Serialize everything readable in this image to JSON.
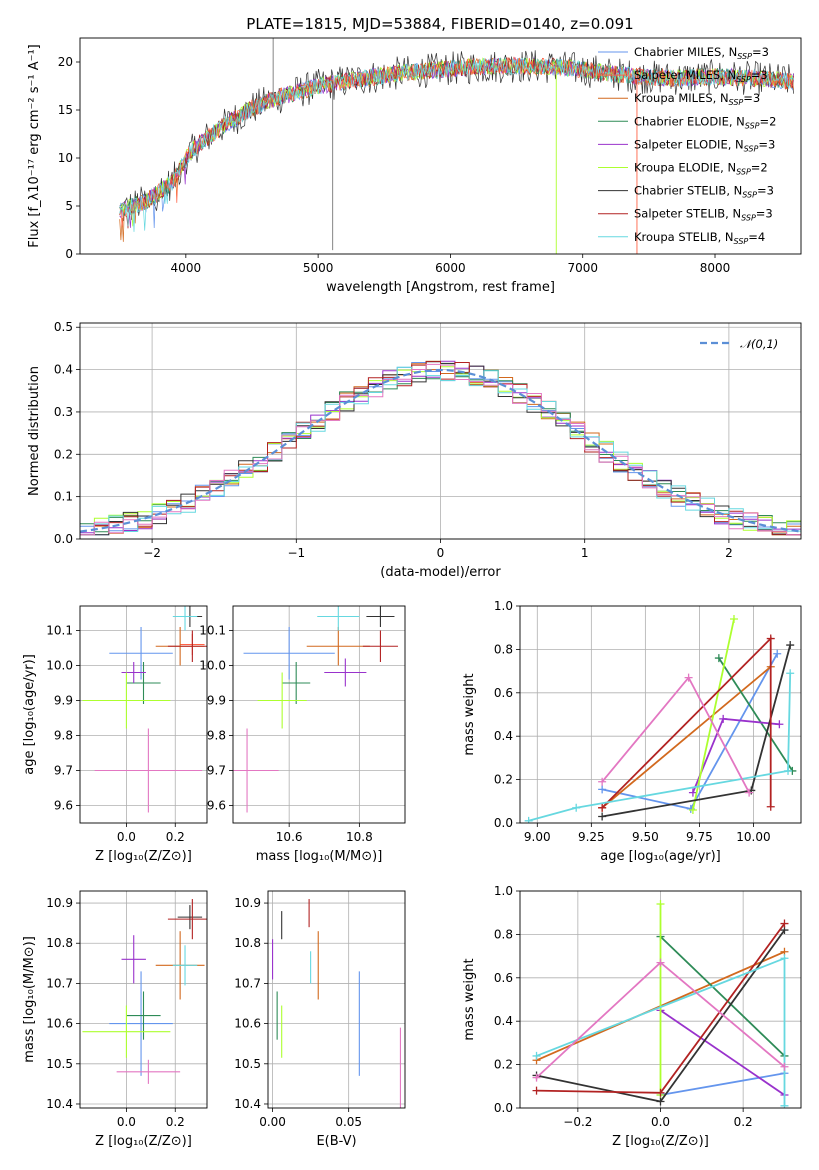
{
  "title": "PLATE=1815, MJD=53884, FIBERID=0140, z=0.091",
  "colors": {
    "Chabrier MILES": "#6495ED",
    "Salpeter MILES": "#FF6347",
    "Kroupa MILES": "#D2691E",
    "Chabrier ELODIE": "#2E8B57",
    "Salpeter ELODIE": "#9932CC",
    "Kroupa ELODIE": "#ADFF2F",
    "Chabrier STELIB": "#333333",
    "Salpeter STELIB": "#B22222",
    "Kroupa STELIB": "#66D8E0",
    "gauss": "#5B8FD6",
    "grid": "#b0b0b0"
  },
  "chart_data": [
    {
      "panel": "spectrum",
      "type": "line",
      "xlabel": "wavelength [Angstrom, rest frame]",
      "ylabel": "Flux [f_λ10⁻¹⁷ erg cm⁻² s⁻¹ A⁻¹]",
      "xlim": [
        3200,
        8650
      ],
      "ylim": [
        0,
        22.5
      ],
      "xticks": [
        4000,
        5000,
        6000,
        7000,
        8000
      ],
      "yticks": [
        0,
        5,
        10,
        15,
        20
      ],
      "grid": false,
      "legend_position": "upper-right",
      "legend": [
        "Chabrier MILES, N_SSP=3",
        "Salpeter MILES, N_SSP=3",
        "Kroupa MILES, N_SSP=3",
        "Chabrier ELODIE, N_SSP=2",
        "Salpeter ELODIE, N_SSP=3",
        "Kroupa ELODIE, N_SSP=2",
        "Chabrier STELIB, N_SSP=3",
        "Salpeter STELIB, N_SSP=3",
        "Kroupa STELIB, N_SSP=4"
      ],
      "legend_rich": [
        [
          "Chabrier MILES, N",
          "SSP",
          "=3"
        ],
        [
          "Salpeter MILES, N",
          "SSP",
          "=3"
        ],
        [
          "Kroupa MILES, N",
          "SSP",
          "=3"
        ],
        [
          "Chabrier ELODIE, N",
          "SSP",
          "=2"
        ],
        [
          "Salpeter ELODIE, N",
          "SSP",
          "=3"
        ],
        [
          "Kroupa ELODIE, N",
          "SSP",
          "=2"
        ],
        [
          "Chabrier STELIB, N",
          "SSP",
          "=3"
        ],
        [
          "Salpeter STELIB, N",
          "SSP",
          "=3"
        ],
        [
          "Kroupa STELIB, N",
          "SSP",
          "=4"
        ]
      ],
      "continuum": {
        "x": [
          3500,
          3700,
          3900,
          4000,
          4100,
          4300,
          4500,
          4700,
          5000,
          5300,
          5600,
          5900,
          6200,
          6500,
          6800,
          7000,
          7200,
          7400,
          7700,
          8000,
          8300,
          8600
        ],
        "y": [
          4.5,
          5.5,
          7.5,
          10.0,
          11.5,
          13.5,
          15.2,
          16.3,
          17.5,
          18.2,
          18.8,
          19.2,
          19.5,
          19.6,
          19.5,
          19.2,
          18.8,
          18.5,
          18.3,
          18.5,
          18.3,
          18.0
        ]
      },
      "spikes": [
        {
          "x": 4660,
          "y": 22.5
        },
        {
          "x": 5110,
          "y": 0.4
        },
        {
          "x": 6800,
          "y": 0
        },
        {
          "x": 7410,
          "y": 0
        }
      ]
    },
    {
      "panel": "residual-histogram",
      "type": "line",
      "xlabel": "(data-model)/error",
      "ylabel": "Normed distribution",
      "xlim": [
        -2.5,
        2.5
      ],
      "ylim": [
        0,
        0.51
      ],
      "xticks": [
        -2,
        -1,
        0,
        1,
        2
      ],
      "yticks": [
        0.0,
        0.1,
        0.2,
        0.3,
        0.4,
        0.5
      ],
      "grid": true,
      "legend_position": "upper-right",
      "legend": [
        "𝒩(0,1)"
      ]
    },
    {
      "panel": "age-vs-Z",
      "type": "scatter",
      "xlabel": "Z [log₁₀(Z/Z⊙)]",
      "ylabel": "age [log₁₀(age/yr)]",
      "xlim": [
        -0.19,
        0.33
      ],
      "ylim": [
        9.55,
        10.17
      ],
      "xticks": [
        0.0,
        0.2
      ],
      "yticks": [
        9.6,
        9.7,
        9.8,
        9.9,
        10.0,
        10.1
      ],
      "grid": true,
      "points": [
        {
          "model": "Chabrier MILES",
          "x": 0.06,
          "y": 10.035,
          "xerr": 0.13,
          "yerr": 0.075
        },
        {
          "model": "Salpeter MILES",
          "x": 0.27,
          "y": 10.06,
          "xerr": 0.05,
          "yerr": 0.03
        },
        {
          "model": "Kroupa MILES",
          "x": 0.22,
          "y": 10.055,
          "xerr": 0.1,
          "yerr": 0.055
        },
        {
          "model": "Chabrier ELODIE",
          "x": 0.07,
          "y": 9.95,
          "xerr": 0.07,
          "yerr": 0.06
        },
        {
          "model": "Salpeter ELODIE",
          "x": 0.03,
          "y": 9.98,
          "xerr": 0.05,
          "yerr": 0.03
        },
        {
          "model": "Kroupa ELODIE",
          "x": 0.0,
          "y": 9.9,
          "xerr": 0.18,
          "yerr": 0.08
        },
        {
          "model": "Chabrier STELIB",
          "x": 0.26,
          "y": 10.14,
          "xerr": 0.05,
          "yerr": 0.03
        },
        {
          "model": "Salpeter STELIB",
          "x": 0.27,
          "y": 10.055,
          "xerr": 0.1,
          "yerr": 0.045
        },
        {
          "model": "Kroupa STELIB",
          "x": 0.24,
          "y": 10.14,
          "xerr": 0.05,
          "yerr": 0.04
        },
        {
          "model": "pink",
          "x": 0.09,
          "y": 9.7,
          "xerr": 0.22,
          "yerr": 0.12
        }
      ]
    },
    {
      "panel": "age-vs-mass",
      "type": "scatter",
      "xlabel": "mass [log₁₀(M/M⊙)]",
      "ylabel": "",
      "xlim": [
        10.44,
        10.93
      ],
      "ylim": [
        9.55,
        10.17
      ],
      "xticks": [
        10.4,
        10.6,
        10.8
      ],
      "yticks": [
        9.6,
        9.7,
        9.8,
        9.9,
        10.0,
        10.1
      ],
      "grid": true,
      "points": [
        {
          "model": "Chabrier MILES",
          "x": 10.6,
          "y": 10.035,
          "xerr": 0.13,
          "yerr": 0.075
        },
        {
          "model": "Kroupa MILES",
          "x": 10.74,
          "y": 10.055,
          "xerr": 0.09,
          "yerr": 0.055
        },
        {
          "model": "Chabrier ELODIE",
          "x": 10.62,
          "y": 9.95,
          "xerr": 0.04,
          "yerr": 0.06
        },
        {
          "model": "Salpeter ELODIE",
          "x": 10.76,
          "y": 9.98,
          "xerr": 0.06,
          "yerr": 0.04
        },
        {
          "model": "Kroupa ELODIE",
          "x": 10.58,
          "y": 9.9,
          "xerr": 0.07,
          "yerr": 0.08
        },
        {
          "model": "Chabrier STELIB",
          "x": 10.86,
          "y": 10.14,
          "xerr": 0.04,
          "yerr": 0.03
        },
        {
          "model": "Salpeter STELIB",
          "x": 10.86,
          "y": 10.055,
          "xerr": 0.05,
          "yerr": 0.045
        },
        {
          "model": "Kroupa STELIB",
          "x": 10.74,
          "y": 10.14,
          "xerr": 0.06,
          "yerr": 0.04
        },
        {
          "model": "pink",
          "x": 10.48,
          "y": 9.7,
          "xerr": 0.09,
          "yerr": 0.12
        }
      ]
    },
    {
      "panel": "weight-vs-age",
      "type": "line",
      "xlabel": "age [log₁₀(age/yr)]",
      "ylabel": "mass weight",
      "xlim": [
        8.92,
        10.22
      ],
      "ylim": [
        0,
        1.0
      ],
      "xticks": [
        9.0,
        9.25,
        9.5,
        9.75,
        10.0
      ],
      "yticks": [
        0.0,
        0.2,
        0.4,
        0.6,
        0.8,
        1.0
      ],
      "grid": true,
      "series": [
        {
          "model": "Chabrier MILES",
          "x": [
            9.3,
            9.71,
            10.11
          ],
          "y": [
            0.155,
            0.065,
            0.78
          ]
        },
        {
          "model": "Kroupa MILES",
          "x": [
            9.3,
            10.08
          ],
          "y": [
            0.07,
            0.72
          ]
        },
        {
          "model": "Chabrier ELODIE",
          "x": [
            9.84,
            10.18
          ],
          "y": [
            0.76,
            0.24
          ]
        },
        {
          "model": "Salpeter ELODIE",
          "x": [
            9.72,
            9.86,
            10.12
          ],
          "y": [
            0.14,
            0.48,
            0.455
          ]
        },
        {
          "model": "Kroupa ELODIE",
          "x": [
            9.72,
            9.91
          ],
          "y": [
            0.06,
            0.94
          ]
        },
        {
          "model": "Chabrier STELIB",
          "x": [
            9.3,
            9.99,
            10.17
          ],
          "y": [
            0.03,
            0.15,
            0.82
          ]
        },
        {
          "model": "Salpeter STELIB",
          "x": [
            9.3,
            10.08,
            10.08
          ],
          "y": [
            0.07,
            0.85,
            0.075
          ]
        },
        {
          "model": "Kroupa STELIB",
          "x": [
            8.96,
            9.18,
            10.16,
            10.17
          ],
          "y": [
            0.01,
            0.07,
            0.24,
            0.69
          ]
        },
        {
          "model": "pink",
          "x": [
            9.3,
            9.7,
            9.98
          ],
          "y": [
            0.19,
            0.67,
            0.14
          ]
        }
      ]
    },
    {
      "panel": "mass-vs-Z",
      "type": "scatter",
      "xlabel": "Z [log₁₀(Z/Z⊙)]",
      "ylabel": "mass [log₁₀(M/M⊙)]",
      "xlim": [
        -0.19,
        0.33
      ],
      "ylim": [
        10.39,
        10.93
      ],
      "xticks": [
        0.0,
        0.2
      ],
      "yticks": [
        10.4,
        10.5,
        10.6,
        10.7,
        10.8,
        10.9
      ],
      "grid": true,
      "points": [
        {
          "model": "Chabrier MILES",
          "x": 0.06,
          "y": 10.6,
          "xerr": 0.13,
          "yerr": 0.13
        },
        {
          "model": "Kroupa MILES",
          "x": 0.22,
          "y": 10.745,
          "xerr": 0.1,
          "yerr": 0.085
        },
        {
          "model": "Chabrier ELODIE",
          "x": 0.07,
          "y": 10.62,
          "xerr": 0.07,
          "yerr": 0.06
        },
        {
          "model": "Salpeter ELODIE",
          "x": 0.03,
          "y": 10.76,
          "xerr": 0.05,
          "yerr": 0.06
        },
        {
          "model": "Kroupa ELODIE",
          "x": 0.0,
          "y": 10.58,
          "xerr": 0.18,
          "yerr": 0.065
        },
        {
          "model": "Chabrier STELIB",
          "x": 0.26,
          "y": 10.865,
          "xerr": 0.05,
          "yerr": 0.03
        },
        {
          "model": "Salpeter STELIB",
          "x": 0.27,
          "y": 10.86,
          "xerr": 0.1,
          "yerr": 0.05
        },
        {
          "model": "Kroupa STELIB",
          "x": 0.24,
          "y": 10.745,
          "xerr": 0.05,
          "yerr": 0.05
        },
        {
          "model": "pink",
          "x": 0.09,
          "y": 10.48,
          "xerr": 0.13,
          "yerr": 0.03
        }
      ]
    },
    {
      "panel": "mass-vs-EBV",
      "type": "scatter",
      "xlabel": "E(B-V)",
      "ylabel": "",
      "xlim": [
        -0.003,
        0.087
      ],
      "ylim": [
        10.39,
        10.93
      ],
      "xticks": [
        0.0,
        0.05
      ],
      "yticks": [
        10.4,
        10.5,
        10.6,
        10.7,
        10.8,
        10.9
      ],
      "grid": true,
      "points": [
        {
          "model": "Chabrier MILES",
          "x": 0.057,
          "y": 10.6,
          "xerr": 0,
          "yerr": 0.13
        },
        {
          "model": "Kroupa MILES",
          "x": 0.03,
          "y": 10.745,
          "xerr": 0,
          "yerr": 0.085
        },
        {
          "model": "Chabrier ELODIE",
          "x": 0.003,
          "y": 10.62,
          "xerr": 0,
          "yerr": 0.06
        },
        {
          "model": "Salpeter ELODIE",
          "x": 0.0,
          "y": 10.76,
          "xerr": 0,
          "yerr": 0.05
        },
        {
          "model": "Kroupa ELODIE",
          "x": 0.006,
          "y": 10.58,
          "xerr": 0,
          "yerr": 0.065
        },
        {
          "model": "Chabrier STELIB",
          "x": 0.006,
          "y": 10.845,
          "xerr": 0,
          "yerr": 0.035
        },
        {
          "model": "Salpeter STELIB",
          "x": 0.024,
          "y": 10.875,
          "xerr": 0,
          "yerr": 0.035
        },
        {
          "model": "Kroupa STELIB",
          "x": 0.025,
          "y": 10.74,
          "xerr": 0,
          "yerr": 0.04
        },
        {
          "model": "pink",
          "x": 0.084,
          "y": 10.49,
          "xerr": 0,
          "yerr": 0.1
        }
      ]
    },
    {
      "panel": "weight-vs-Z",
      "type": "line",
      "xlabel": "Z [log₁₀(Z/Z⊙)]",
      "ylabel": "mass weight",
      "xlim": [
        -0.34,
        0.34
      ],
      "ylim": [
        0,
        1.0
      ],
      "xticks": [
        -0.2,
        0.0,
        0.2
      ],
      "yticks": [
        0.0,
        0.2,
        0.4,
        0.6,
        0.8,
        1.0
      ],
      "grid": true,
      "series": [
        {
          "model": "Chabrier MILES",
          "x": [
            0.0,
            0.3
          ],
          "y": [
            0.06,
            0.16
          ]
        },
        {
          "model": "Kroupa MILES",
          "x": [
            -0.3,
            0.3
          ],
          "y": [
            0.22,
            0.72
          ]
        },
        {
          "model": "Chabrier ELODIE",
          "x": [
            0.0,
            0.3
          ],
          "y": [
            0.79,
            0.24
          ]
        },
        {
          "model": "Salpeter ELODIE",
          "x": [
            0.0,
            0.3
          ],
          "y": [
            0.45,
            0.06
          ]
        },
        {
          "model": "Kroupa ELODIE",
          "x": [
            0.0,
            0.0
          ],
          "y": [
            0.06,
            0.94
          ]
        },
        {
          "model": "Chabrier STELIB",
          "x": [
            -0.3,
            0.0,
            0.3
          ],
          "y": [
            0.15,
            0.03,
            0.82
          ]
        },
        {
          "model": "Salpeter STELIB",
          "x": [
            -0.3,
            0.0,
            0.3
          ],
          "y": [
            0.08,
            0.07,
            0.85
          ]
        },
        {
          "model": "Kroupa STELIB",
          "x": [
            -0.3,
            0.3,
            0.3
          ],
          "y": [
            0.24,
            0.69,
            0.01
          ]
        },
        {
          "model": "pink",
          "x": [
            -0.3,
            0.0,
            0.3
          ],
          "y": [
            0.14,
            0.67,
            0.19
          ]
        }
      ]
    }
  ]
}
